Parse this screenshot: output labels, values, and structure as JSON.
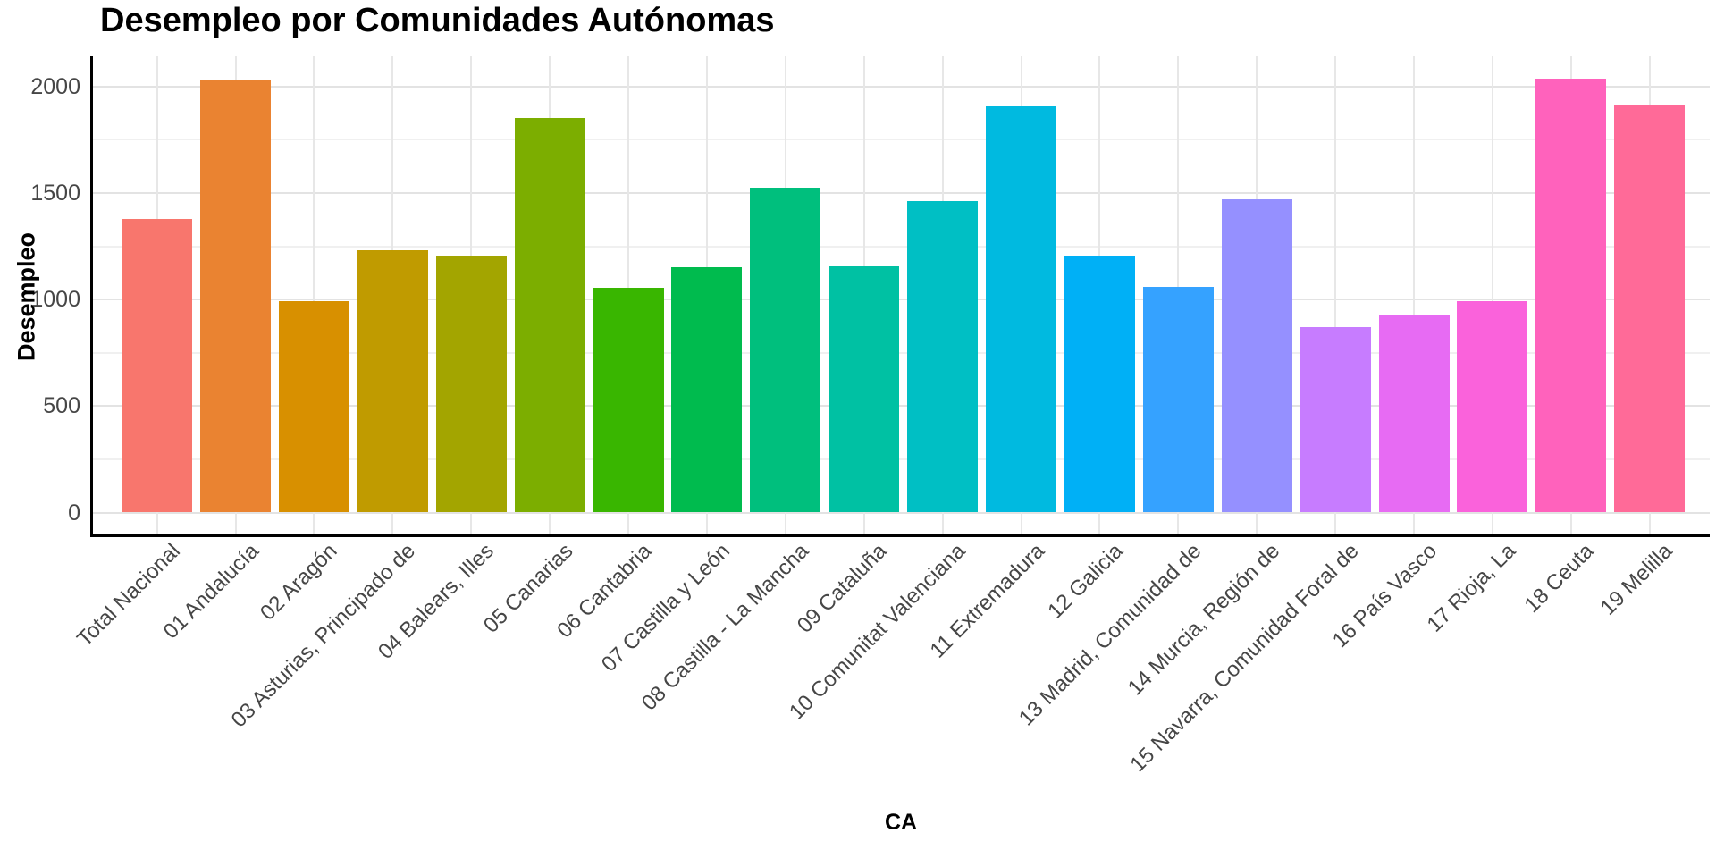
{
  "title": "Desempleo por Comunidades Autónomas",
  "chart_data": {
    "type": "bar",
    "title": "Desempleo por Comunidades Autónomas",
    "xlabel": "CA",
    "ylabel": "Desempleo",
    "categories": [
      "Total Nacional",
      "01 Andalucía",
      "02 Aragón",
      "03 Asturias, Principado de",
      "04 Balears, Illes",
      "05 Canarias",
      "06 Cantabria",
      "07 Castilla y León",
      "08 Castilla - La Mancha",
      "09 Cataluña",
      "10 Comunitat Valenciana",
      "11 Extremadura",
      "12 Galicia",
      "13 Madrid, Comunidad de",
      "14 Murcia, Región de",
      "15 Navarra, Comunidad Foral de",
      "16 País Vasco",
      "17 Rioja, La",
      "18 Ceuta",
      "19 Melilla"
    ],
    "values": [
      1380,
      2030,
      990,
      1230,
      1205,
      1850,
      1055,
      1150,
      1525,
      1155,
      1460,
      1905,
      1205,
      1060,
      1470,
      870,
      925,
      990,
      2035,
      1915
    ],
    "bar_colors": [
      "#F8766D",
      "#EA8331",
      "#D89000",
      "#C09B00",
      "#A3A500",
      "#7CAE00",
      "#39B600",
      "#00BB4E",
      "#00BF7D",
      "#00C1A3",
      "#00BFC4",
      "#00BAE0",
      "#00B0F6",
      "#35A2FF",
      "#9590FF",
      "#C77CFF",
      "#E76BF3",
      "#FA62DB",
      "#FF62BC",
      "#FF6A98"
    ],
    "yticks": [
      0,
      500,
      1000,
      1500,
      2000
    ],
    "y_minor_ticks": [
      250,
      750,
      1250,
      1750
    ],
    "ylim": [
      0,
      2145
    ],
    "grid": true,
    "legend": false,
    "x_tick_rotation": 45,
    "background_color": "#FFFFFF",
    "axis_text_color": "#464646",
    "axis_line_color": "#000000"
  }
}
